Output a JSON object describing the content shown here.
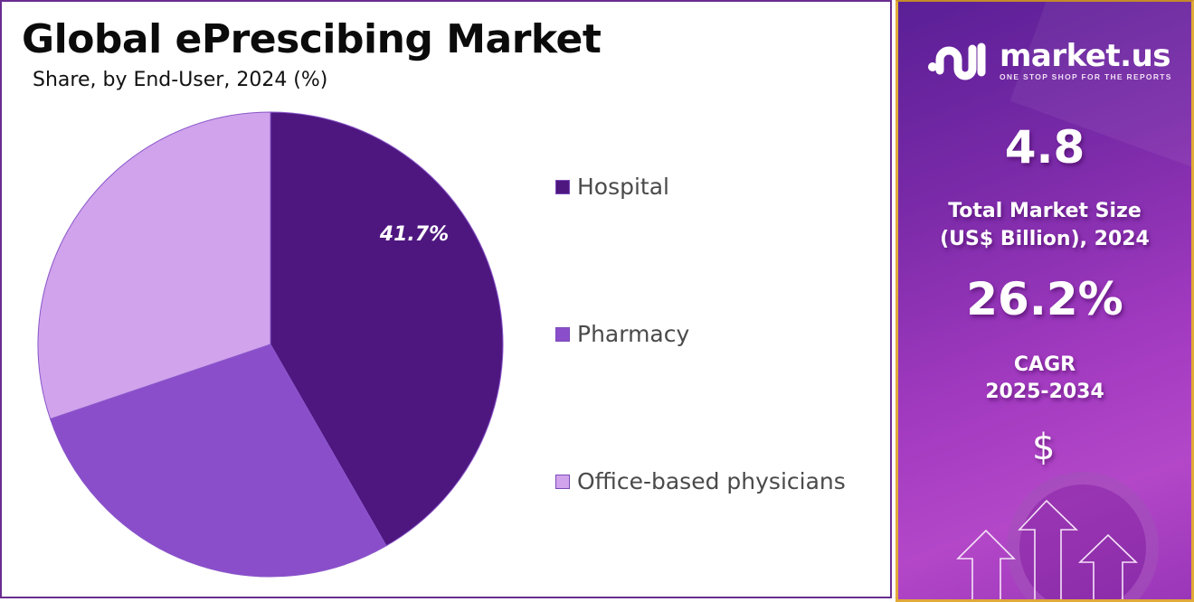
{
  "header": {
    "title": "Global ePrescibing Market",
    "subtitle": "Share, by End-User, 2024 (%)"
  },
  "chart_data": {
    "type": "pie",
    "title": "Global ePrescibing Market",
    "subtitle": "Share, by End-User, 2024 (%)",
    "categories": [
      "Hospital",
      "Pharmacy",
      "Office-based physicians"
    ],
    "values": [
      41.7,
      28.1,
      30.2
    ],
    "colors": [
      "#4e1780",
      "#8a4ecb",
      "#d0a3ec"
    ],
    "data_labels": [
      "41.7%",
      "",
      ""
    ],
    "start_angle": "12 o'clock, clockwise",
    "legend_position": "right"
  },
  "legend": {
    "items": [
      {
        "label": "Hospital",
        "color": "#4e1780"
      },
      {
        "label": "Pharmacy",
        "color": "#8a4ecb"
      },
      {
        "label": "Office-based physicians",
        "color": "#d0a3ec"
      }
    ]
  },
  "sidebar": {
    "logo": {
      "name": "market.us",
      "tagline": "ONE STOP SHOP FOR THE REPORTS"
    },
    "market_size_value": "4.8",
    "market_size_label_line1": "Total Market Size",
    "market_size_label_line2": "(US$ Billion), 2024",
    "cagr_value": "26.2%",
    "cagr_label_line1": "CAGR",
    "cagr_label_line2": "2025-2034",
    "currency_symbol": "$"
  }
}
